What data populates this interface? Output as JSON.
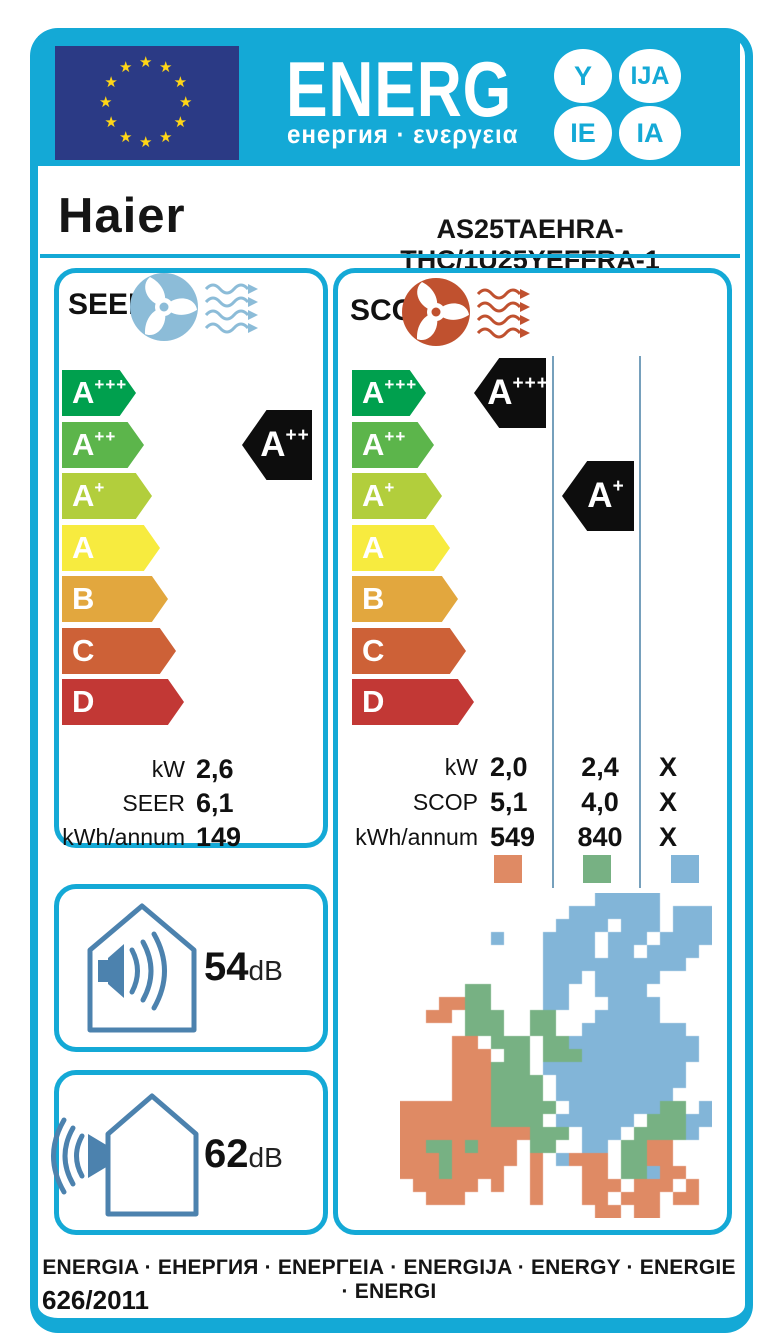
{
  "colors": {
    "cyan": "#14a9d6",
    "flag_blue": "#2b3a85",
    "star": "#ffd617",
    "vline": "#76a0bc",
    "steel": "#4c82ae",
    "seer_icon": "#8cbcd8",
    "scop_icon": "#c0512f"
  },
  "header": {
    "logo_text": "ENERG",
    "logo_suffixes": [
      "Y",
      "IJA",
      "IE",
      "IA"
    ],
    "subtitle": "енергия · ενεργεια",
    "brand": "Haier",
    "model": "AS25TAEHRA-THC/1U25YEFFRA-1"
  },
  "rating_scale": [
    {
      "grade": "A",
      "sup": "+++",
      "color": "#00a04e"
    },
    {
      "grade": "A",
      "sup": "++",
      "color": "#5cb54b"
    },
    {
      "grade": "A",
      "sup": "+",
      "color": "#b2ce3c"
    },
    {
      "grade": "A",
      "sup": "",
      "color": "#f7eb3f"
    },
    {
      "grade": "B",
      "sup": "",
      "color": "#e2a73e"
    },
    {
      "grade": "C",
      "sup": "",
      "color": "#cd6137"
    },
    {
      "grade": "D",
      "sup": "",
      "color": "#c23835"
    }
  ],
  "seer": {
    "label": "SEER",
    "rating": {
      "grade": "A",
      "sup": "++"
    },
    "rows": [
      {
        "label": "kW",
        "value": "2,6"
      },
      {
        "label": "SEER",
        "value": "6,1"
      },
      {
        "label": "kWh/annum",
        "value": "149"
      }
    ]
  },
  "scop": {
    "label": "SCOP",
    "row_labels": [
      "kW",
      "SCOP",
      "kWh/annum"
    ],
    "zones": [
      {
        "name": "warmer",
        "color": "#df8a64",
        "rating": {
          "grade": "A",
          "sup": "+++"
        },
        "kw": "2,0",
        "scop": "5,1",
        "kwh": "549"
      },
      {
        "name": "average",
        "color": "#77b183",
        "rating": {
          "grade": "A",
          "sup": "+"
        },
        "kw": "2,4",
        "scop": "4,0",
        "kwh": "840"
      },
      {
        "name": "colder",
        "color": "#82b5d8",
        "kw": "X",
        "scop": "X",
        "kwh": "X"
      }
    ]
  },
  "noise": [
    {
      "value": "54",
      "unit": "dB",
      "location": "indoor"
    },
    {
      "value": "62",
      "unit": "dB",
      "location": "outdoor"
    }
  ],
  "footer": {
    "languages": "ENERGIA · ЕНЕРГИЯ · ΕΝΕΡΓΕΙΑ · ENERGIJA · ENERGY · ENERGIE · ENERGI",
    "regulation": "626/2011"
  },
  "climate_map": {
    "cell": 13,
    "colors": {
      "W": "#df8a64",
      "A": "#77b183",
      "C": "#82b5d8"
    },
    "rows": [
      "...............CCCCC....",
      ".............CCCCCCC.CCC",
      "............CCCC.CCC.CCC",
      ".......C...CCCC.CCC.CCCC",
      "...........CCCC.CC.CCCC.",
      "...........CCCCCCCCCCC..",
      "...........CCC.CCCCC....",
      ".....AA....CC..CCCC.....",
      "...WWAA....CC...CCCC....",
      "..WW.AAA..AA...CCCCC....",
      ".....AAA..AA..CCCCCCCC..",
      "....WW.AAA.AACCCCCCCCCC.",
      "....WWW.AA.AAACCCCCCCCC.",
      "....WWWAAA.CCCCCCCCCCC..",
      "....WWWAAAA.CCCCCCCCCC..",
      "....WWWAAAA.CCCCCCCCC...",
      "WWWWWWWAAAAA.CCCCCCCAA.C",
      "WWWWWWWAAAA.CCCCCC.AAACC",
      "WWWWWWWWWWAAA.CCC.AAAAC.",
      "WWAAWAWWW.AA..CC.AAWW...",
      "WWWAWWWWW.W.CWWW.AAWW...",
      "WWWAWWWW..W...WW.AACWW..",
      ".WWWWW.W..W...WWW.WWW.W.",
      "..WWW.....W...WW.WWW.WW.",
      "...............WW.WW...."
    ]
  }
}
